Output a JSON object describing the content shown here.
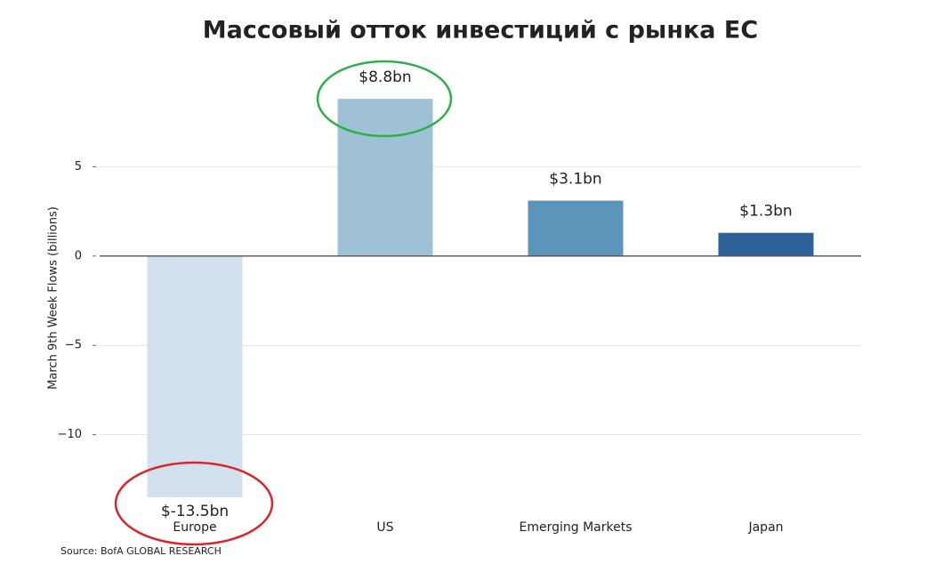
{
  "chart_data": {
    "type": "bar",
    "title": "Массовый отток инвестиций с рынка ЕС",
    "y_label": "March 9th Week Flows (billions)",
    "source": "Source: BofA GLOBAL RESEARCH",
    "categories": [
      "Europe",
      "US",
      "Emerging Markets",
      "Japan"
    ],
    "values": [
      -13.5,
      8.8,
      3.1,
      1.3
    ],
    "value_labels": [
      "$-13.5bn",
      "$8.8bn",
      "$3.1bn",
      "$1.3bn"
    ],
    "colors": [
      "#d3e1ee",
      "#9fc1d6",
      "#5b96ba",
      "#2c6297"
    ],
    "ylim": [
      -14.5,
      10
    ],
    "yticks": [
      {
        "value": -10,
        "label": "−10"
      },
      {
        "value": -5,
        "label": "−5"
      },
      0,
      5
    ],
    "grid": true
  }
}
